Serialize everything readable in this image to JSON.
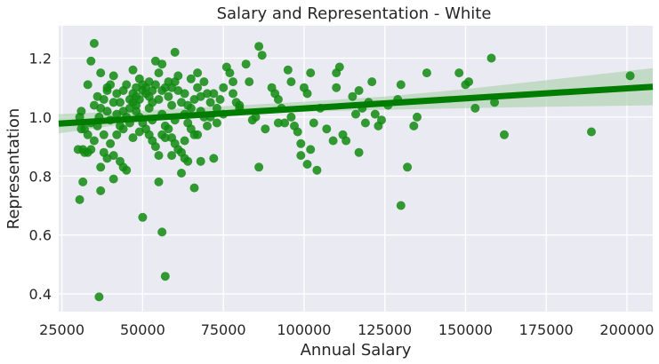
{
  "chart_data": {
    "type": "scatter",
    "title": "Salary and Representation - White",
    "xlabel": "Annual Salary",
    "ylabel": "Representation",
    "xlim": [
      24000,
      208000
    ],
    "ylim": [
      0.34,
      1.31
    ],
    "xticks": [
      25000,
      50000,
      75000,
      100000,
      125000,
      150000,
      175000,
      200000
    ],
    "yticks": [
      0.4,
      0.6,
      0.8,
      1.0,
      1.2
    ],
    "xtick_labels": [
      "25000",
      "50000",
      "75000",
      "100000",
      "125000",
      "150000",
      "175000",
      "200000"
    ],
    "ytick_labels": [
      "0.4",
      "0.6",
      "0.8",
      "1.0",
      "1.2"
    ],
    "grid": true,
    "legend": "none",
    "colors": {
      "background": "#eaeaf2",
      "grid": "#ffffff",
      "points": "#118a11",
      "line": "#007c00",
      "band": "#a9cfa9"
    },
    "regression": {
      "x": [
        24000,
        208000
      ],
      "y": [
        0.978,
        1.103
      ]
    },
    "confidence_band": {
      "x": [
        24000,
        50000,
        75000,
        100000,
        125000,
        150000,
        175000,
        208000
      ],
      "lower": [
        0.945,
        0.985,
        1.003,
        1.018,
        1.025,
        1.03,
        1.035,
        1.04
      ],
      "upper": [
        1.01,
        1.022,
        1.037,
        1.052,
        1.07,
        1.095,
        1.125,
        1.166
      ]
    },
    "points": [
      [
        35000,
        1.25
      ],
      [
        34000,
        1.19
      ],
      [
        37000,
        1.15
      ],
      [
        33000,
        1.11
      ],
      [
        31000,
        1.02
      ],
      [
        30500,
        1.0
      ],
      [
        31000,
        0.96
      ],
      [
        30000,
        0.89
      ],
      [
        31500,
        0.89
      ],
      [
        32000,
        0.88
      ],
      [
        33000,
        0.88
      ],
      [
        34000,
        0.89
      ],
      [
        33000,
        0.94
      ],
      [
        32000,
        0.96
      ],
      [
        35000,
        0.92
      ],
      [
        36000,
        0.97
      ],
      [
        36500,
        1.0
      ],
      [
        37000,
        1.03
      ],
      [
        38000,
        1.06
      ],
      [
        39000,
        1.09
      ],
      [
        40000,
        1.11
      ],
      [
        41000,
        1.14
      ],
      [
        42000,
        1.08
      ],
      [
        43000,
        1.05
      ],
      [
        44000,
        1.02
      ],
      [
        45000,
        1.0
      ],
      [
        46000,
        0.98
      ],
      [
        44000,
        0.96
      ],
      [
        42000,
        0.94
      ],
      [
        40000,
        0.91
      ],
      [
        38000,
        0.88
      ],
      [
        39000,
        0.86
      ],
      [
        41000,
        0.87
      ],
      [
        43000,
        0.85
      ],
      [
        44000,
        0.83
      ],
      [
        45000,
        0.82
      ],
      [
        37000,
        0.83
      ],
      [
        37000,
        0.75
      ],
      [
        31500,
        0.78
      ],
      [
        30500,
        0.72
      ],
      [
        41000,
        0.79
      ],
      [
        36500,
        0.39
      ],
      [
        47000,
        1.16
      ],
      [
        48000,
        1.1
      ],
      [
        49000,
        1.13
      ],
      [
        50000,
        1.09
      ],
      [
        51000,
        1.08
      ],
      [
        52000,
        1.12
      ],
      [
        53000,
        1.05
      ],
      [
        54000,
        1.19
      ],
      [
        55000,
        1.15
      ],
      [
        56000,
        1.18
      ],
      [
        57000,
        1.1
      ],
      [
        58000,
        1.07
      ],
      [
        59000,
        1.04
      ],
      [
        60000,
        1.22
      ],
      [
        60000,
        1.12
      ],
      [
        61000,
        1.09
      ],
      [
        62000,
        1.05
      ],
      [
        63000,
        1.01
      ],
      [
        64000,
        0.98
      ],
      [
        65000,
        1.03
      ],
      [
        66000,
        1.06
      ],
      [
        67000,
        1.1
      ],
      [
        68000,
        1.02
      ],
      [
        69000,
        1.0
      ],
      [
        70000,
        0.97
      ],
      [
        71000,
        1.05
      ],
      [
        72000,
        1.08
      ],
      [
        73000,
        0.98
      ],
      [
        74000,
        1.06
      ],
      [
        75000,
        1.1
      ],
      [
        76000,
        1.17
      ],
      [
        77000,
        1.15
      ],
      [
        78000,
        1.12
      ],
      [
        79000,
        1.05
      ],
      [
        80000,
        1.03
      ],
      [
        47000,
        1.05
      ],
      [
        48000,
        1.02
      ],
      [
        49000,
        1.0
      ],
      [
        50000,
        0.98
      ],
      [
        51000,
        0.96
      ],
      [
        52000,
        0.94
      ],
      [
        53000,
        0.92
      ],
      [
        54000,
        0.9
      ],
      [
        55000,
        0.87
      ],
      [
        56000,
        0.94
      ],
      [
        57000,
        0.97
      ],
      [
        58000,
        0.96
      ],
      [
        59000,
        0.93
      ],
      [
        60000,
        0.91
      ],
      [
        61000,
        0.89
      ],
      [
        62000,
        0.88
      ],
      [
        63000,
        0.86
      ],
      [
        64000,
        0.85
      ],
      [
        65000,
        0.96
      ],
      [
        66000,
        0.94
      ],
      [
        68000,
        0.85
      ],
      [
        72000,
        0.86
      ],
      [
        55000,
        0.78
      ],
      [
        62000,
        0.81
      ],
      [
        66000,
        0.76
      ],
      [
        50000,
        0.66
      ],
      [
        56000,
        0.61
      ],
      [
        57000,
        0.46
      ],
      [
        82000,
        1.18
      ],
      [
        83000,
        1.12
      ],
      [
        84000,
        0.99
      ],
      [
        85000,
        1.0
      ],
      [
        86000,
        1.24
      ],
      [
        87000,
        1.21
      ],
      [
        86000,
        0.83
      ],
      [
        90000,
        1.1
      ],
      [
        91000,
        1.08
      ],
      [
        92000,
        1.06
      ],
      [
        93000,
        1.03
      ],
      [
        94000,
        0.98
      ],
      [
        95000,
        1.16
      ],
      [
        96000,
        1.12
      ],
      [
        97000,
        0.97
      ],
      [
        98000,
        0.95
      ],
      [
        99000,
        0.91
      ],
      [
        100000,
        1.1
      ],
      [
        101000,
        1.08
      ],
      [
        102000,
        1.15
      ],
      [
        103000,
        0.98
      ],
      [
        99000,
        0.87
      ],
      [
        101000,
        0.84
      ],
      [
        102000,
        0.89
      ],
      [
        104000,
        0.82
      ],
      [
        110000,
        1.1
      ],
      [
        111000,
        1.17
      ],
      [
        110000,
        1.15
      ],
      [
        112000,
        0.94
      ],
      [
        109000,
        0.92
      ],
      [
        113000,
        0.92
      ],
      [
        115000,
        1.07
      ],
      [
        117000,
        1.09
      ],
      [
        118000,
        1.03
      ],
      [
        119000,
        0.98
      ],
      [
        120000,
        1.05
      ],
      [
        121000,
        1.12
      ],
      [
        122000,
        1.01
      ],
      [
        123000,
        0.97
      ],
      [
        124000,
        0.99
      ],
      [
        126000,
        1.04
      ],
      [
        129000,
        1.06
      ],
      [
        130000,
        1.11
      ],
      [
        117000,
        0.88
      ],
      [
        130000,
        0.7
      ],
      [
        132000,
        0.83
      ],
      [
        134000,
        0.97
      ],
      [
        135000,
        1.0
      ],
      [
        138000,
        1.15
      ],
      [
        148000,
        1.15
      ],
      [
        150000,
        1.11
      ],
      [
        151000,
        1.12
      ],
      [
        153000,
        1.03
      ],
      [
        158000,
        1.2
      ],
      [
        159000,
        1.05
      ],
      [
        162000,
        0.94
      ],
      [
        189000,
        0.95
      ],
      [
        201000,
        1.14
      ],
      [
        44000,
        1.09
      ],
      [
        45000,
        1.11
      ],
      [
        46000,
        1.06
      ],
      [
        47000,
        1.08
      ],
      [
        48000,
        1.07
      ],
      [
        49000,
        1.06
      ],
      [
        50000,
        1.11
      ],
      [
        51000,
        1.1
      ],
      [
        52000,
        1.07
      ],
      [
        53000,
        1.09
      ],
      [
        54000,
        1.11
      ],
      [
        55000,
        1.06
      ],
      [
        56000,
        1.09
      ],
      [
        58000,
        1.12
      ],
      [
        59000,
        1.1
      ],
      [
        61000,
        1.14
      ],
      [
        63000,
        1.08
      ],
      [
        65000,
        1.13
      ],
      [
        67000,
        1.15
      ],
      [
        69000,
        1.12
      ],
      [
        70000,
        1.08
      ],
      [
        73000,
        1.03
      ],
      [
        46000,
        1.03
      ],
      [
        48000,
        1.04
      ],
      [
        52000,
        1.03
      ],
      [
        56000,
        1.01
      ],
      [
        60000,
        0.99
      ],
      [
        64000,
        1.04
      ],
      [
        68000,
        1.07
      ],
      [
        71000,
        1.0
      ],
      [
        39000,
        1.02
      ],
      [
        40000,
        0.99
      ],
      [
        42000,
        1.01
      ],
      [
        43000,
        0.97
      ],
      [
        38000,
        0.94
      ],
      [
        34000,
        0.98
      ],
      [
        35000,
        1.04
      ],
      [
        36000,
        1.07
      ],
      [
        39000,
        1.1
      ],
      [
        41000,
        1.05
      ],
      [
        75000,
        1.01
      ],
      [
        78000,
        1.08
      ],
      [
        80000,
        1.04
      ],
      [
        92000,
        0.98
      ],
      [
        96000,
        1.0
      ],
      [
        105000,
        1.03
      ],
      [
        107000,
        0.96
      ],
      [
        116000,
        1.01
      ],
      [
        88000,
        0.96
      ],
      [
        57000,
        0.93
      ],
      [
        59000,
        0.87
      ],
      [
        63000,
        0.92
      ],
      [
        67000,
        0.94
      ],
      [
        53000,
        0.99
      ],
      [
        49000,
        0.95
      ],
      [
        47000,
        0.93
      ]
    ]
  }
}
